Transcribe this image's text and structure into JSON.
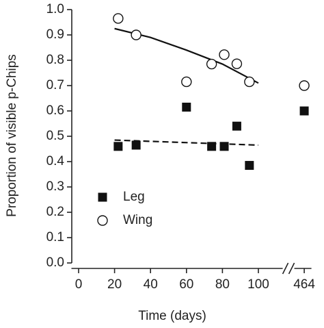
{
  "chart_data": {
    "type": "scatter",
    "xlabel": "Time (days)",
    "ylabel": "Proportion of visible p-Chips",
    "xlim": [
      -4,
      468
    ],
    "x_break": [
      112,
      460
    ],
    "xticks": [
      0,
      20,
      40,
      60,
      80,
      100,
      464
    ],
    "ylim": [
      0,
      1
    ],
    "yticks": [
      {
        "value": 0,
        "label": "0.0"
      },
      0.1,
      0.2,
      0.3,
      0.4,
      0.5,
      0.6,
      0.7,
      0.8,
      0.9,
      {
        "value": 1,
        "label": "1.0"
      }
    ],
    "legend": "left",
    "series": [
      {
        "name": "Leg",
        "marker": "square",
        "color": "#111111",
        "x": [
          22,
          32,
          60,
          74,
          81,
          88,
          95,
          464
        ],
        "values": [
          0.46,
          0.465,
          0.615,
          0.46,
          0.46,
          0.54,
          0.385,
          0.6
        ],
        "fit": {
          "x": [
            20,
            100
          ],
          "values": [
            0.485,
            0.465
          ],
          "dash": true
        }
      },
      {
        "name": "Wing",
        "marker": "circle",
        "color": "#111111",
        "x": [
          22,
          32,
          60,
          74,
          81,
          88,
          95,
          464
        ],
        "values": [
          0.965,
          0.9,
          0.715,
          0.785,
          0.822,
          0.786,
          0.715,
          0.7
        ],
        "fit": {
          "x": [
            20,
            40,
            60,
            80,
            100
          ],
          "values": [
            0.925,
            0.89,
            0.84,
            0.785,
            0.71
          ],
          "dash": false
        }
      }
    ]
  }
}
